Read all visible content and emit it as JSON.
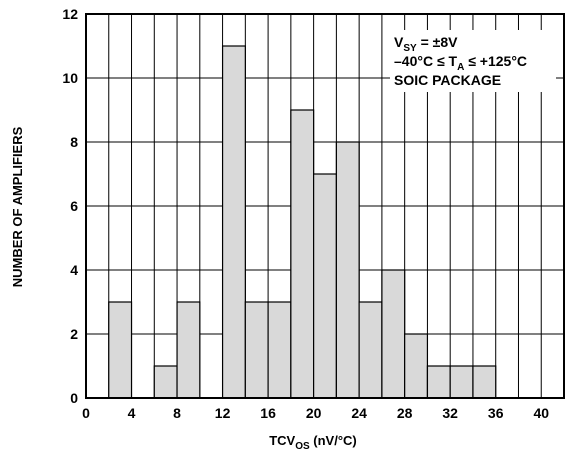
{
  "chart_data": {
    "type": "bar",
    "bin_width": 2,
    "bins": [
      {
        "start": 2,
        "value": 3
      },
      {
        "start": 4,
        "value": 0
      },
      {
        "start": 6,
        "value": 1
      },
      {
        "start": 8,
        "value": 3
      },
      {
        "start": 10,
        "value": 0
      },
      {
        "start": 12,
        "value": 11
      },
      {
        "start": 14,
        "value": 3
      },
      {
        "start": 16,
        "value": 3
      },
      {
        "start": 18,
        "value": 9
      },
      {
        "start": 20,
        "value": 7
      },
      {
        "start": 22,
        "value": 8
      },
      {
        "start": 24,
        "value": 3
      },
      {
        "start": 26,
        "value": 4
      },
      {
        "start": 28,
        "value": 2
      },
      {
        "start": 30,
        "value": 1
      },
      {
        "start": 32,
        "value": 1
      },
      {
        "start": 34,
        "value": 1
      }
    ],
    "xlim": [
      0,
      42
    ],
    "ylim": [
      0,
      12
    ],
    "xticks": [
      0,
      4,
      8,
      12,
      16,
      20,
      24,
      28,
      32,
      36,
      40
    ],
    "yticks": [
      0,
      2,
      4,
      6,
      8,
      10,
      12
    ],
    "xlabel": {
      "main": "TCV",
      "sub": "OS",
      "suffix": " (nV/°C)"
    },
    "ylabel": "NUMBER OF AMPLIFIERS",
    "grid": true,
    "bar_fill": "#d9d9d9",
    "annotation": {
      "line1": {
        "main": "V",
        "sub": "SY",
        "suffix": " = ±8V"
      },
      "line2": {
        "pre": "–40°C ≤ T",
        "sub": "A",
        "suffix": " ≤ +125°C"
      },
      "line3": "SOIC PACKAGE"
    }
  }
}
